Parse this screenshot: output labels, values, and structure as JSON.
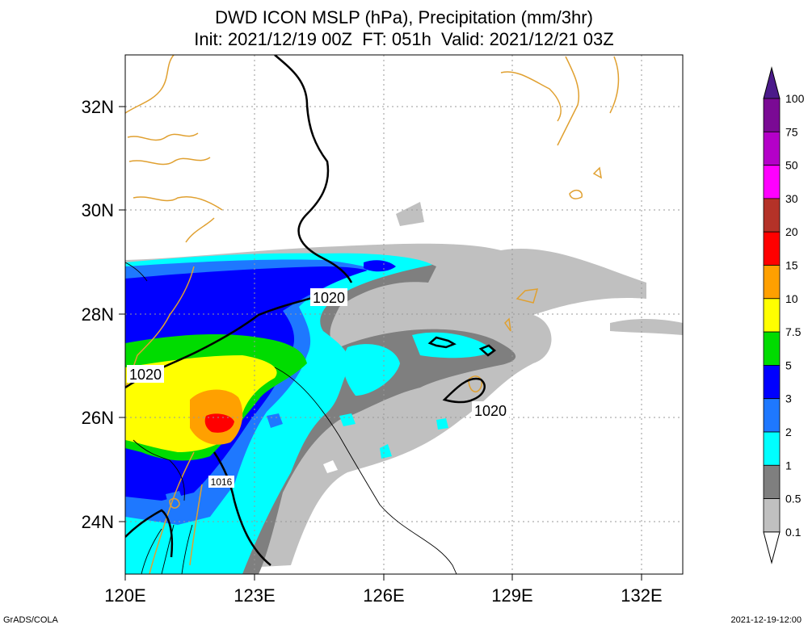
{
  "header": {
    "title_line1": "DWD ICON MSLP (hPa), Precipitation (mm/3hr)",
    "title_line2": "Init: 2021/12/19 00Z  FT: 051h  Valid: 2021/12/21 03Z"
  },
  "axes": {
    "lon_ticks": [
      "120E",
      "123E",
      "126E",
      "129E",
      "132E"
    ],
    "lat_ticks": [
      "32N",
      "30N",
      "28N",
      "26N",
      "24N"
    ]
  },
  "isobars": {
    "labels": [
      "1020",
      "1020",
      "1020",
      "1016"
    ]
  },
  "legend": {
    "levels": [
      "100",
      "75",
      "50",
      "30",
      "20",
      "15",
      "10",
      "7.5",
      "5",
      "3",
      "2",
      "1",
      "0.5",
      "0.1"
    ],
    "colors": [
      "#7a0a94",
      "#b400c8",
      "#ff00ff",
      "#b43228",
      "#ff0000",
      "#ffa000",
      "#ffff00",
      "#00dc00",
      "#0000ff",
      "#1e78ff",
      "#00ffff",
      "#7f7f7f",
      "#c0c0c0",
      "#ffffff"
    ]
  },
  "footer": {
    "left": "GrADS/COLA",
    "right": "2021-12-19-12:00"
  },
  "colors": {
    "coast": "#e0a030",
    "grid": "#999999",
    "isobar": "#000000"
  }
}
